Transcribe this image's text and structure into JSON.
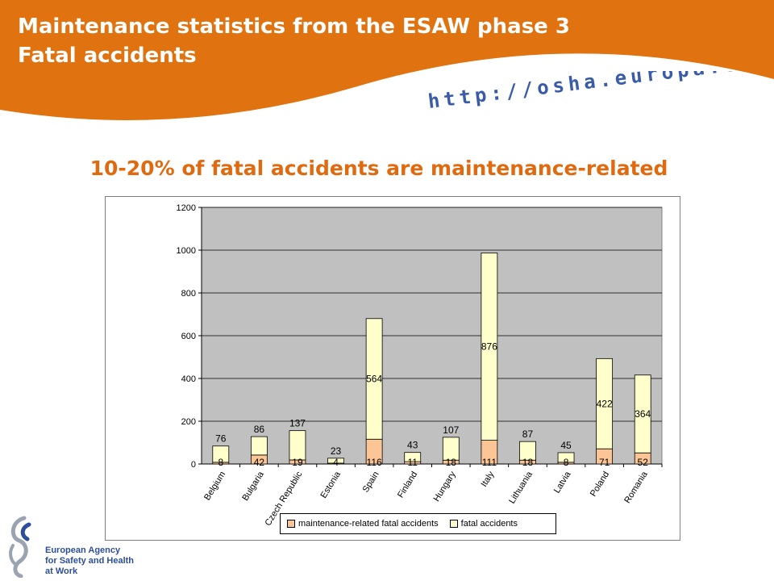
{
  "header": {
    "title_line1": "Maintenance statistics from the ESAW phase 3",
    "title_line2": "Fatal accidents",
    "url": "http://osha.europa.eu"
  },
  "subtitle": "10-20% of fatal accidents are maintenance-related",
  "colors": {
    "header_orange": "#e0720f",
    "subtitle_orange": "#e06a10",
    "url_blue": "#3a5ba8",
    "plot_bg": "#c0c0c0",
    "maintenance": "#fbc595",
    "fatal": "#ffffcc"
  },
  "chart_data": {
    "type": "bar",
    "stacked": true,
    "categories": [
      "Belgium",
      "Bulgaria",
      "Czech Republic",
      "Estonia",
      "Spain",
      "Finland",
      "Hungary",
      "Italy",
      "Lithuania",
      "Latvia",
      "Poland",
      "Romania"
    ],
    "series": [
      {
        "name": "maintenance-related fatal accidents",
        "values": [
          8,
          42,
          19,
          4,
          116,
          11,
          18,
          111,
          18,
          8,
          71,
          52
        ]
      },
      {
        "name": "fatal accidents",
        "values": [
          76,
          86,
          137,
          23,
          564,
          43,
          107,
          876,
          87,
          45,
          422,
          364
        ]
      }
    ],
    "ylim": [
      0,
      1200
    ],
    "yticks": [
      "0",
      "200",
      "400",
      "600",
      "800",
      "1000",
      "1200"
    ],
    "ytick_values": [
      0,
      200,
      400,
      600,
      800,
      1000,
      1200
    ],
    "grid": true,
    "legend_position": "bottom"
  },
  "logo": {
    "line1": "European Agency",
    "line2": "for Safety and Health",
    "line3": "at Work"
  }
}
